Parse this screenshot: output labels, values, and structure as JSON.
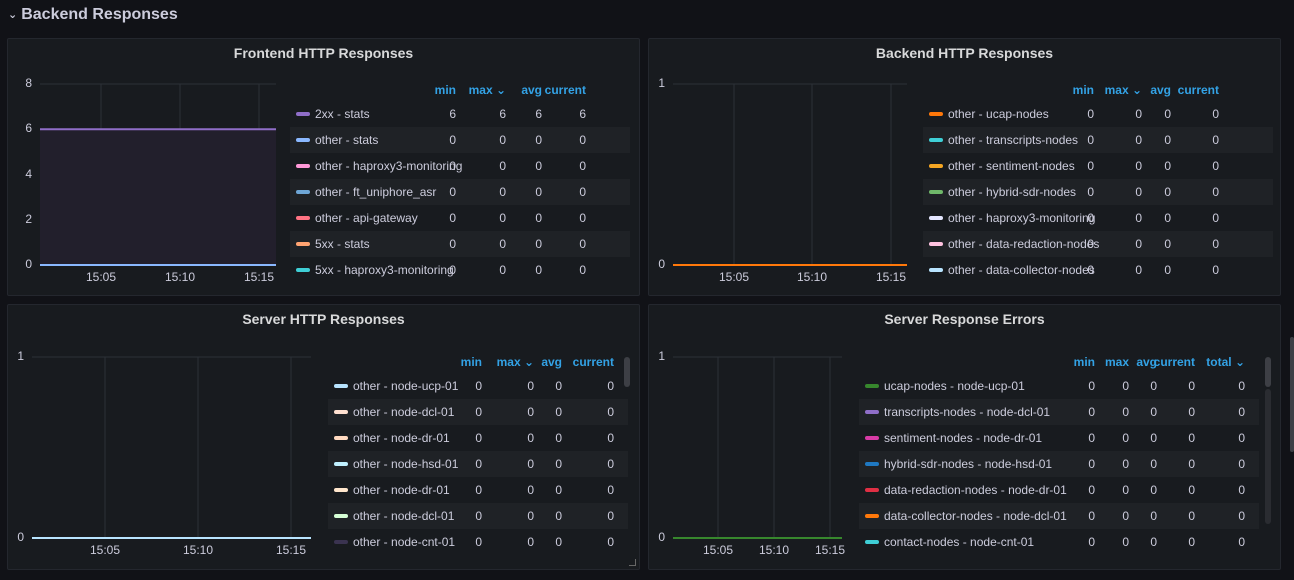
{
  "row": {
    "title": "Backend Responses",
    "chevron_icon": "chevron-down-icon"
  },
  "panels": [
    {
      "title": "Frontend HTTP Responses",
      "y_ticks": [
        "8",
        "6",
        "4",
        "2",
        "0"
      ],
      "x_ticks": [
        "15:05",
        "15:10",
        "15:15"
      ],
      "columns": [
        "min",
        "max",
        "avg",
        "current"
      ],
      "sort_column": "max",
      "chart_data": {
        "type": "line",
        "ylim": [
          0,
          8
        ],
        "x_ticks": [
          "15:05",
          "15:10",
          "15:15"
        ],
        "series": [
          {
            "name": "2xx - stats",
            "color": "#8f6ec8",
            "values": [
              6,
              6
            ]
          },
          {
            "name": "other - stats",
            "color": "#8ab8ff",
            "values": [
              0,
              0
            ]
          }
        ]
      },
      "rows": [
        {
          "name": "2xx - stats",
          "color": "#8f6ec8",
          "min": "6",
          "max": "6",
          "avg": "6",
          "current": "6"
        },
        {
          "name": "other - stats",
          "color": "#8ab8ff",
          "min": "0",
          "max": "0",
          "avg": "0",
          "current": "0"
        },
        {
          "name": "other - haproxy3-monitoring",
          "color": "#ff99d8",
          "min": "0",
          "max": "0",
          "avg": "0",
          "current": "0"
        },
        {
          "name": "other - ft_uniphore_asr",
          "color": "#6ea6d6",
          "min": "0",
          "max": "0",
          "avg": "0",
          "current": "0"
        },
        {
          "name": "other - api-gateway",
          "color": "#ff7383",
          "min": "0",
          "max": "0",
          "avg": "0",
          "current": "0"
        },
        {
          "name": "5xx - stats",
          "color": "#ffa472",
          "min": "0",
          "max": "0",
          "avg": "0",
          "current": "0"
        },
        {
          "name": "5xx - haproxy3-monitoring",
          "color": "#3fcfd6",
          "min": "0",
          "max": "0",
          "avg": "0",
          "current": "0"
        }
      ]
    },
    {
      "title": "Backend HTTP Responses",
      "y_ticks": [
        "1",
        "0"
      ],
      "x_ticks": [
        "15:05",
        "15:10",
        "15:15"
      ],
      "columns": [
        "min",
        "max",
        "avg",
        "current"
      ],
      "sort_column": "max",
      "chart_data": {
        "type": "line",
        "ylim": [
          0,
          1
        ],
        "x_ticks": [
          "15:05",
          "15:10",
          "15:15"
        ],
        "series": [
          {
            "name": "other - ucap-nodes",
            "color": "#ff780a",
            "values": [
              0,
              0
            ]
          }
        ]
      },
      "rows": [
        {
          "name": "other - ucap-nodes",
          "color": "#ff780a",
          "min": "0",
          "max": "0",
          "avg": "0",
          "current": "0"
        },
        {
          "name": "other - transcripts-nodes",
          "color": "#3fcfd6",
          "min": "0",
          "max": "0",
          "avg": "0",
          "current": "0"
        },
        {
          "name": "other - sentiment-nodes",
          "color": "#f5a623",
          "min": "0",
          "max": "0",
          "avg": "0",
          "current": "0"
        },
        {
          "name": "other - hybrid-sdr-nodes",
          "color": "#6fb86a",
          "min": "0",
          "max": "0",
          "avg": "0",
          "current": "0"
        },
        {
          "name": "other - haproxy3-monitoring",
          "color": "#e4e6ff",
          "min": "0",
          "max": "0",
          "avg": "0",
          "current": "0"
        },
        {
          "name": "other - data-redaction-nodes",
          "color": "#ffc2e0",
          "min": "0",
          "max": "0",
          "avg": "0",
          "current": "0"
        },
        {
          "name": "other - data-collector-nodes",
          "color": "#b8e4ff",
          "min": "0",
          "max": "0",
          "avg": "0",
          "current": "0"
        }
      ]
    },
    {
      "title": "Server HTTP Responses",
      "y_ticks": [
        "1",
        "0"
      ],
      "x_ticks": [
        "15:05",
        "15:10",
        "15:15"
      ],
      "columns": [
        "min",
        "max",
        "avg",
        "current"
      ],
      "sort_column": "max",
      "chart_data": {
        "type": "line",
        "ylim": [
          0,
          1
        ],
        "x_ticks": [
          "15:05",
          "15:10",
          "15:15"
        ],
        "series": [
          {
            "name": "other - node-ucp-01",
            "color": "#b8e4ff",
            "values": [
              0,
              0
            ]
          }
        ]
      },
      "rows": [
        {
          "name": "other - node-ucp-01",
          "color": "#b8e4ff",
          "min": "0",
          "max": "0",
          "avg": "0",
          "current": "0"
        },
        {
          "name": "other - node-dcl-01",
          "color": "#ffe0d0",
          "min": "0",
          "max": "0",
          "avg": "0",
          "current": "0"
        },
        {
          "name": "other - node-dr-01",
          "color": "#ffd9c0",
          "min": "0",
          "max": "0",
          "avg": "0",
          "current": "0"
        },
        {
          "name": "other - node-hsd-01",
          "color": "#c0f0ff",
          "min": "0",
          "max": "0",
          "avg": "0",
          "current": "0"
        },
        {
          "name": "other - node-dr-01",
          "color": "#ffe6cc",
          "min": "0",
          "max": "0",
          "avg": "0",
          "current": "0"
        },
        {
          "name": "other - node-dcl-01",
          "color": "#d6ffd6",
          "min": "0",
          "max": "0",
          "avg": "0",
          "current": "0"
        },
        {
          "name": "other - node-cnt-01",
          "color": "#3a3350",
          "min": "0",
          "max": "0",
          "avg": "0",
          "current": "0"
        }
      ]
    },
    {
      "title": "Server Response Errors",
      "y_ticks": [
        "1",
        "0"
      ],
      "x_ticks": [
        "15:05",
        "15:10",
        "15:15"
      ],
      "columns": [
        "min",
        "max",
        "avg",
        "current",
        "total"
      ],
      "sort_column": "total",
      "chart_data": {
        "type": "line",
        "ylim": [
          0,
          1
        ],
        "x_ticks": [
          "15:05",
          "15:10",
          "15:15"
        ],
        "series": [
          {
            "name": "ucap-nodes - node-ucp-01",
            "color": "#37872d",
            "values": [
              0,
              0
            ]
          }
        ]
      },
      "rows": [
        {
          "name": "ucap-nodes - node-ucp-01",
          "color": "#37872d",
          "min": "0",
          "max": "0",
          "avg": "0",
          "current": "0",
          "total": "0"
        },
        {
          "name": "transcripts-nodes - node-dcl-01",
          "color": "#8f6ec8",
          "min": "0",
          "max": "0",
          "avg": "0",
          "current": "0",
          "total": "0"
        },
        {
          "name": "sentiment-nodes - node-dr-01",
          "color": "#d83ba6",
          "min": "0",
          "max": "0",
          "avg": "0",
          "current": "0",
          "total": "0"
        },
        {
          "name": "hybrid-sdr-nodes - node-hsd-01",
          "color": "#1f78c1",
          "min": "0",
          "max": "0",
          "avg": "0",
          "current": "0",
          "total": "0"
        },
        {
          "name": "data-redaction-nodes - node-dr-01",
          "color": "#e02f44",
          "min": "0",
          "max": "0",
          "avg": "0",
          "current": "0",
          "total": "0"
        },
        {
          "name": "data-collector-nodes - node-dcl-01",
          "color": "#ff780a",
          "min": "0",
          "max": "0",
          "avg": "0",
          "current": "0",
          "total": "0"
        },
        {
          "name": "contact-nodes - node-cnt-01",
          "color": "#3fcfd6",
          "min": "0",
          "max": "0",
          "avg": "0",
          "current": "0",
          "total": "0"
        }
      ]
    }
  ]
}
